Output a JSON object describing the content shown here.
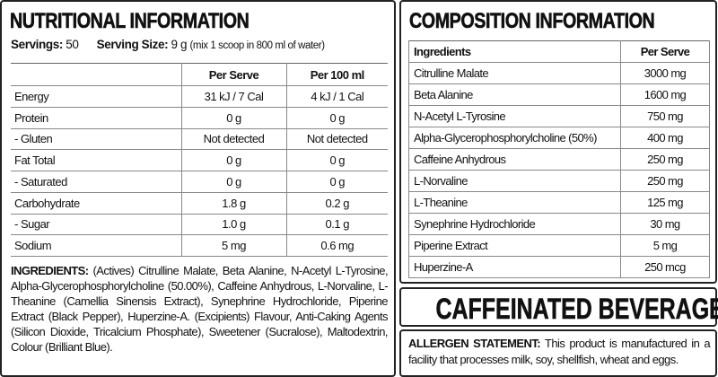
{
  "nutrition": {
    "title": "NUTRITIONAL INFORMATION",
    "servings_label": "Servings:",
    "servings_value": "50",
    "serving_size_label": "Serving Size:",
    "serving_size_value": "9 g",
    "serving_note": "(mix 1 scoop in 800 ml of water)",
    "columns": [
      "",
      "Per Serve",
      "Per 100 ml"
    ],
    "rows": [
      [
        "Energy",
        "31 kJ / 7 Cal",
        "4 kJ / 1 Cal"
      ],
      [
        "Protein",
        "0 g",
        "0 g"
      ],
      [
        "- Gluten",
        "Not detected",
        "Not detected"
      ],
      [
        "Fat Total",
        "0 g",
        "0 g"
      ],
      [
        "- Saturated",
        "0 g",
        "0 g"
      ],
      [
        "Carbohydrate",
        "1.8 g",
        "0.2 g"
      ],
      [
        "- Sugar",
        "1.0 g",
        "0.1 g"
      ],
      [
        "Sodium",
        "5 mg",
        "0.6 mg"
      ]
    ],
    "ingredients_label": "INGREDIENTS:",
    "ingredients_text": "(Actives) Citrulline Malate, Beta Alanine, N-Acetyl L-Tyrosine, Alpha-Glycerophosphorylcholine (50.00%), Caffeine Anhydrous, L-Norvaline, L-Theanine (Camellia Sinensis Extract), Synephrine Hydrochloride, Piperine Extract (Black Pepper), Huperzine-A. (Excipients) Flavour, Anti-Caking Agents (Silicon Dioxide, Tricalcium Phosphate), Sweetener (Sucralose), Maltodextrin, Colour (Brilliant Blue)."
  },
  "composition": {
    "title": "COMPOSITION INFORMATION",
    "columns": [
      "Ingredients",
      "Per Serve"
    ],
    "rows": [
      [
        "Citrulline Malate",
        "3000 mg"
      ],
      [
        "Beta Alanine",
        "1600 mg"
      ],
      [
        "N-Acetyl L-Tyrosine",
        "750 mg"
      ],
      [
        "Alpha-Glycerophosphorylcholine (50%)",
        "400 mg"
      ],
      [
        "Caffeine Anhydrous",
        "250 mg"
      ],
      [
        "L-Norvaline",
        "250 mg"
      ],
      [
        "L-Theanine",
        "125 mg"
      ],
      [
        "Synephrine Hydrochloride",
        "30 mg"
      ],
      [
        "Piperine Extract",
        "5 mg"
      ],
      [
        "Huperzine-A",
        "250 mcg"
      ]
    ]
  },
  "caffeinated": "CAFFEINATED BEVERAGE",
  "allergen": {
    "label": "ALLERGEN STATEMENT:",
    "text": "This product is manufactured in a facility that processes milk, soy, shellfish, wheat and eggs."
  }
}
